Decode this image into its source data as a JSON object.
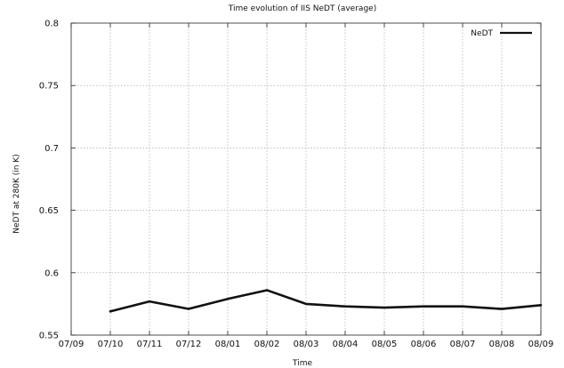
{
  "chart_data": {
    "type": "line",
    "title": "Time evolution of IIS NeDT (average)",
    "xlabel": "Time",
    "ylabel": "NeDT at 280K (in K)",
    "x_ticks": [
      "07/09",
      "07/10",
      "07/11",
      "07/12",
      "08/01",
      "08/02",
      "08/03",
      "08/04",
      "08/05",
      "08/06",
      "08/07",
      "08/08",
      "08/09"
    ],
    "y_ticks": [
      "0.55",
      "0.6",
      "0.65",
      "0.7",
      "0.75",
      "0.8"
    ],
    "ylim": [
      0.55,
      0.8
    ],
    "grid": true,
    "legend": {
      "position": "top-right"
    },
    "series": [
      {
        "name": "NeDT",
        "color": "#111111",
        "x": [
          "07/10",
          "07/11",
          "07/12",
          "08/01",
          "08/02",
          "08/03",
          "08/04",
          "08/05",
          "08/06",
          "08/07",
          "08/08",
          "08/09"
        ],
        "y": [
          0.569,
          0.577,
          0.571,
          0.579,
          0.586,
          0.575,
          0.573,
          0.572,
          0.573,
          0.573,
          0.571,
          0.574
        ]
      }
    ]
  }
}
